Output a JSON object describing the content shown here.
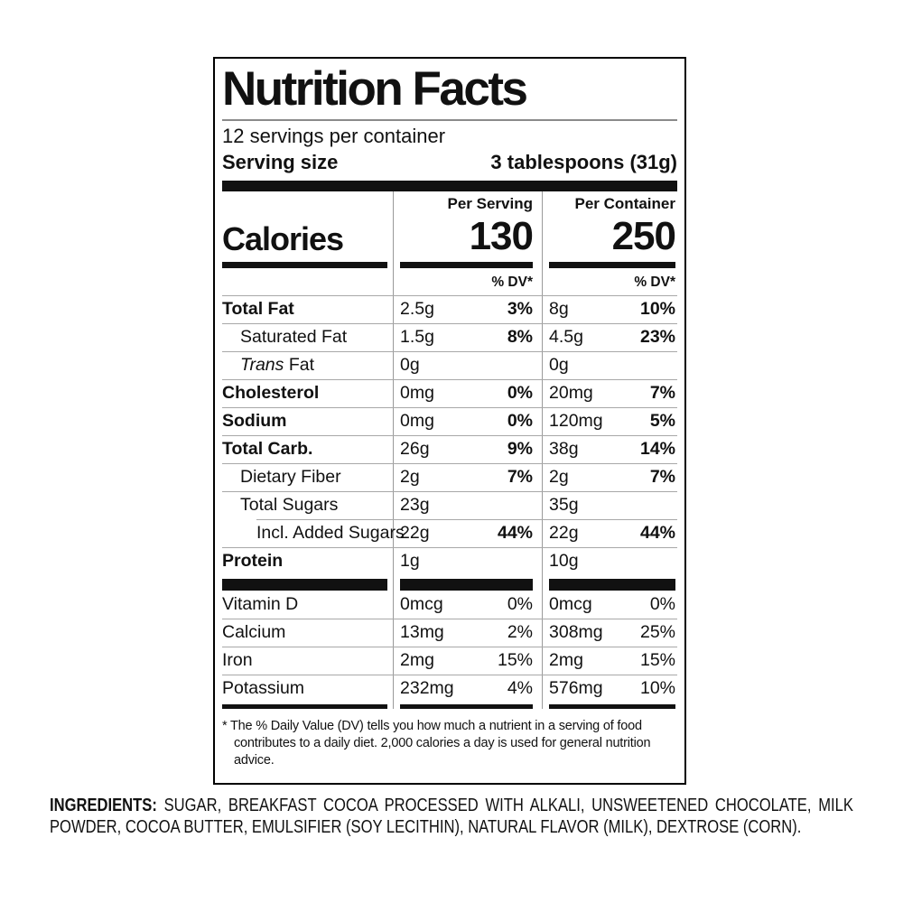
{
  "label": {
    "title": "Nutrition Facts",
    "servings_per_container": "12 servings per container",
    "serving_size": {
      "label": "Serving size",
      "value": "3 tablespoons (31g)"
    },
    "calories": {
      "label": "Calories",
      "columns": [
        {
          "header": "Per Serving",
          "value": "130",
          "dv_header": "% DV*"
        },
        {
          "header": "Per Container",
          "value": "250",
          "dv_header": "% DV*"
        }
      ]
    },
    "nutrients": [
      {
        "name_parts": [
          {
            "text": "Total Fat",
            "italic": false
          }
        ],
        "bold": true,
        "indent": 0,
        "sep_indent": false,
        "per_serving": {
          "amount": "2.5g",
          "dv": "3%"
        },
        "per_container": {
          "amount": "8g",
          "dv": "10%"
        }
      },
      {
        "name_parts": [
          {
            "text": "Saturated Fat",
            "italic": false
          }
        ],
        "bold": false,
        "indent": 1,
        "sep_indent": false,
        "per_serving": {
          "amount": "1.5g",
          "dv": "8%"
        },
        "per_container": {
          "amount": "4.5g",
          "dv": "23%"
        }
      },
      {
        "name_parts": [
          {
            "text": "Trans",
            "italic": true
          },
          {
            "text": " Fat",
            "italic": false
          }
        ],
        "bold": false,
        "indent": 1,
        "sep_indent": false,
        "per_serving": {
          "amount": "0g",
          "dv": ""
        },
        "per_container": {
          "amount": "0g",
          "dv": ""
        }
      },
      {
        "name_parts": [
          {
            "text": "Cholesterol",
            "italic": false
          }
        ],
        "bold": true,
        "indent": 0,
        "sep_indent": false,
        "per_serving": {
          "amount": "0mg",
          "dv": "0%"
        },
        "per_container": {
          "amount": "20mg",
          "dv": "7%"
        }
      },
      {
        "name_parts": [
          {
            "text": "Sodium",
            "italic": false
          }
        ],
        "bold": true,
        "indent": 0,
        "sep_indent": false,
        "per_serving": {
          "amount": "0mg",
          "dv": "0%"
        },
        "per_container": {
          "amount": "120mg",
          "dv": "5%"
        }
      },
      {
        "name_parts": [
          {
            "text": "Total Carb.",
            "italic": false
          }
        ],
        "bold": true,
        "indent": 0,
        "sep_indent": false,
        "per_serving": {
          "amount": "26g",
          "dv": "9%"
        },
        "per_container": {
          "amount": "38g",
          "dv": "14%"
        }
      },
      {
        "name_parts": [
          {
            "text": "Dietary Fiber",
            "italic": false
          }
        ],
        "bold": false,
        "indent": 1,
        "sep_indent": false,
        "per_serving": {
          "amount": "2g",
          "dv": "7%"
        },
        "per_container": {
          "amount": "2g",
          "dv": "7%"
        }
      },
      {
        "name_parts": [
          {
            "text": "Total Sugars",
            "italic": false
          }
        ],
        "bold": false,
        "indent": 1,
        "sep_indent": false,
        "per_serving": {
          "amount": "23g",
          "dv": ""
        },
        "per_container": {
          "amount": "35g",
          "dv": ""
        }
      },
      {
        "name_parts": [
          {
            "text": "Incl. Added Sugars",
            "italic": false
          }
        ],
        "bold": false,
        "indent": 2,
        "sep_indent": true,
        "per_serving": {
          "amount": "22g",
          "dv": "44%"
        },
        "per_container": {
          "amount": "22g",
          "dv": "44%"
        }
      },
      {
        "name_parts": [
          {
            "text": "Protein",
            "italic": false
          }
        ],
        "bold": true,
        "indent": 0,
        "sep_indent": false,
        "per_serving": {
          "amount": "1g",
          "dv": ""
        },
        "per_container": {
          "amount": "10g",
          "dv": ""
        }
      }
    ],
    "vitamins": [
      {
        "name": "Vitamin D",
        "per_serving": {
          "amount": "0mcg",
          "dv": "0%"
        },
        "per_container": {
          "amount": "0mcg",
          "dv": "0%"
        }
      },
      {
        "name": "Calcium",
        "per_serving": {
          "amount": "13mg",
          "dv": "2%"
        },
        "per_container": {
          "amount": "308mg",
          "dv": "25%"
        }
      },
      {
        "name": "Iron",
        "per_serving": {
          "amount": "2mg",
          "dv": "15%"
        },
        "per_container": {
          "amount": "2mg",
          "dv": "15%"
        }
      },
      {
        "name": "Potassium",
        "per_serving": {
          "amount": "232mg",
          "dv": "4%"
        },
        "per_container": {
          "amount": "576mg",
          "dv": "10%"
        }
      }
    ],
    "footnote": "* The % Daily Value (DV) tells you how much a nutrient in a serving of food contributes to a daily diet. 2,000 calories a day is used for general nutrition advice."
  },
  "ingredients": {
    "label": "INGREDIENTS:",
    "text": "SUGAR, BREAKFAST COCOA PROCESSED WITH ALKALI, UNSWEETENED CHOCOLATE, MILK POWDER, COCOA BUTTER, EMULSIFIER (SOY LECITHIN), NATURAL FLAVOR (MILK), DEXTROSE (CORN)."
  },
  "colors": {
    "text": "#111111",
    "bar": "#111111",
    "hairline": "#a8a8a8",
    "divider": "#9a9a9a",
    "background": "#ffffff"
  }
}
